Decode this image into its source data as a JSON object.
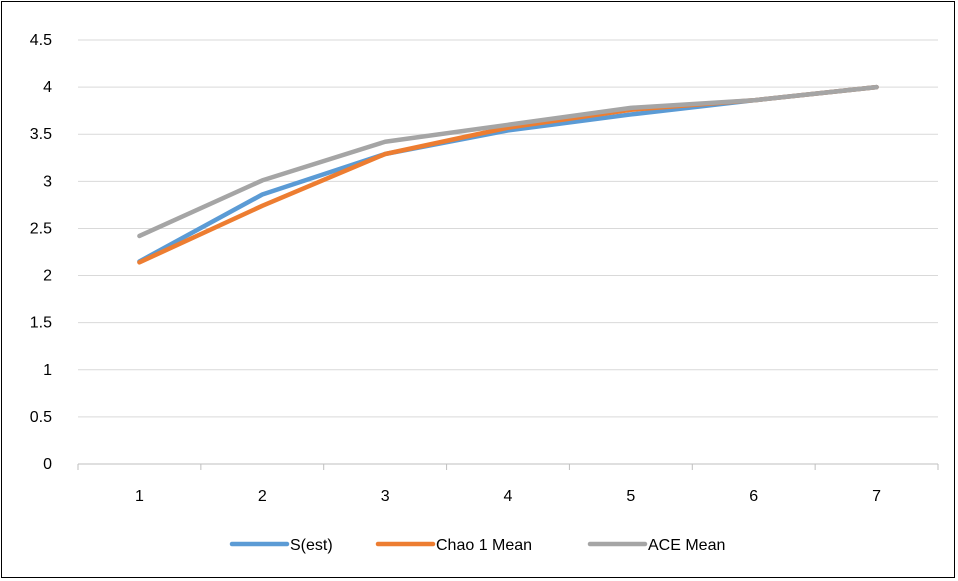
{
  "chart_data": {
    "type": "line",
    "categories": [
      "1",
      "2",
      "3",
      "4",
      "5",
      "6",
      "7"
    ],
    "ylim": [
      0,
      4.5
    ],
    "yticks": [
      "0",
      "0.5",
      "1",
      "1.5",
      "2",
      "2.5",
      "3",
      "3.5",
      "4",
      "4.5"
    ],
    "grid": true,
    "legend_position": "bottom",
    "series": [
      {
        "name": "S(est)",
        "color": "#5B9BD5",
        "values": [
          2.15,
          2.86,
          3.29,
          3.54,
          3.71,
          3.86,
          4.0
        ]
      },
      {
        "name": "Chao 1 Mean",
        "color": "#ED7D31",
        "values": [
          2.14,
          2.74,
          3.29,
          3.57,
          3.76,
          3.86,
          4.0
        ]
      },
      {
        "name": "ACE Mean",
        "color": "#A5A5A5",
        "values": [
          2.42,
          3.01,
          3.42,
          3.6,
          3.78,
          3.86,
          4.0
        ]
      }
    ]
  }
}
